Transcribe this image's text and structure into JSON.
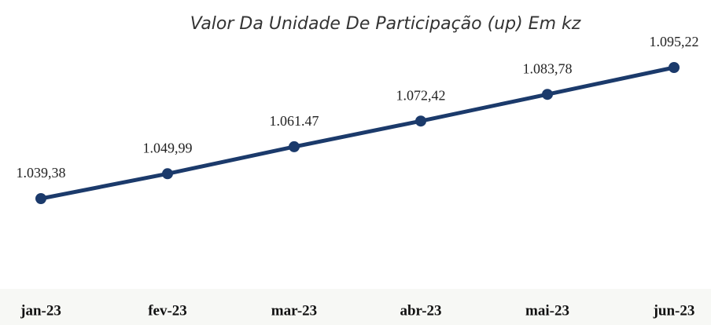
{
  "chart_data": {
    "type": "line",
    "title": "Valor Da Unidade De Participação (up) Em kz",
    "categories": [
      "jan-23",
      "fev-23",
      "mar-23",
      "abr-23",
      "mai-23",
      "jun-23"
    ],
    "series": [
      {
        "color": "#1b3a6b",
        "values": [
          1039.38,
          1049.99,
          1061.47,
          1072.42,
          1083.78,
          1095.22
        ],
        "value_labels": [
          "1.039,38",
          "1.049,99",
          "1.061.47",
          "1.072,42",
          "1.083,78",
          "1.095,22"
        ]
      }
    ]
  }
}
